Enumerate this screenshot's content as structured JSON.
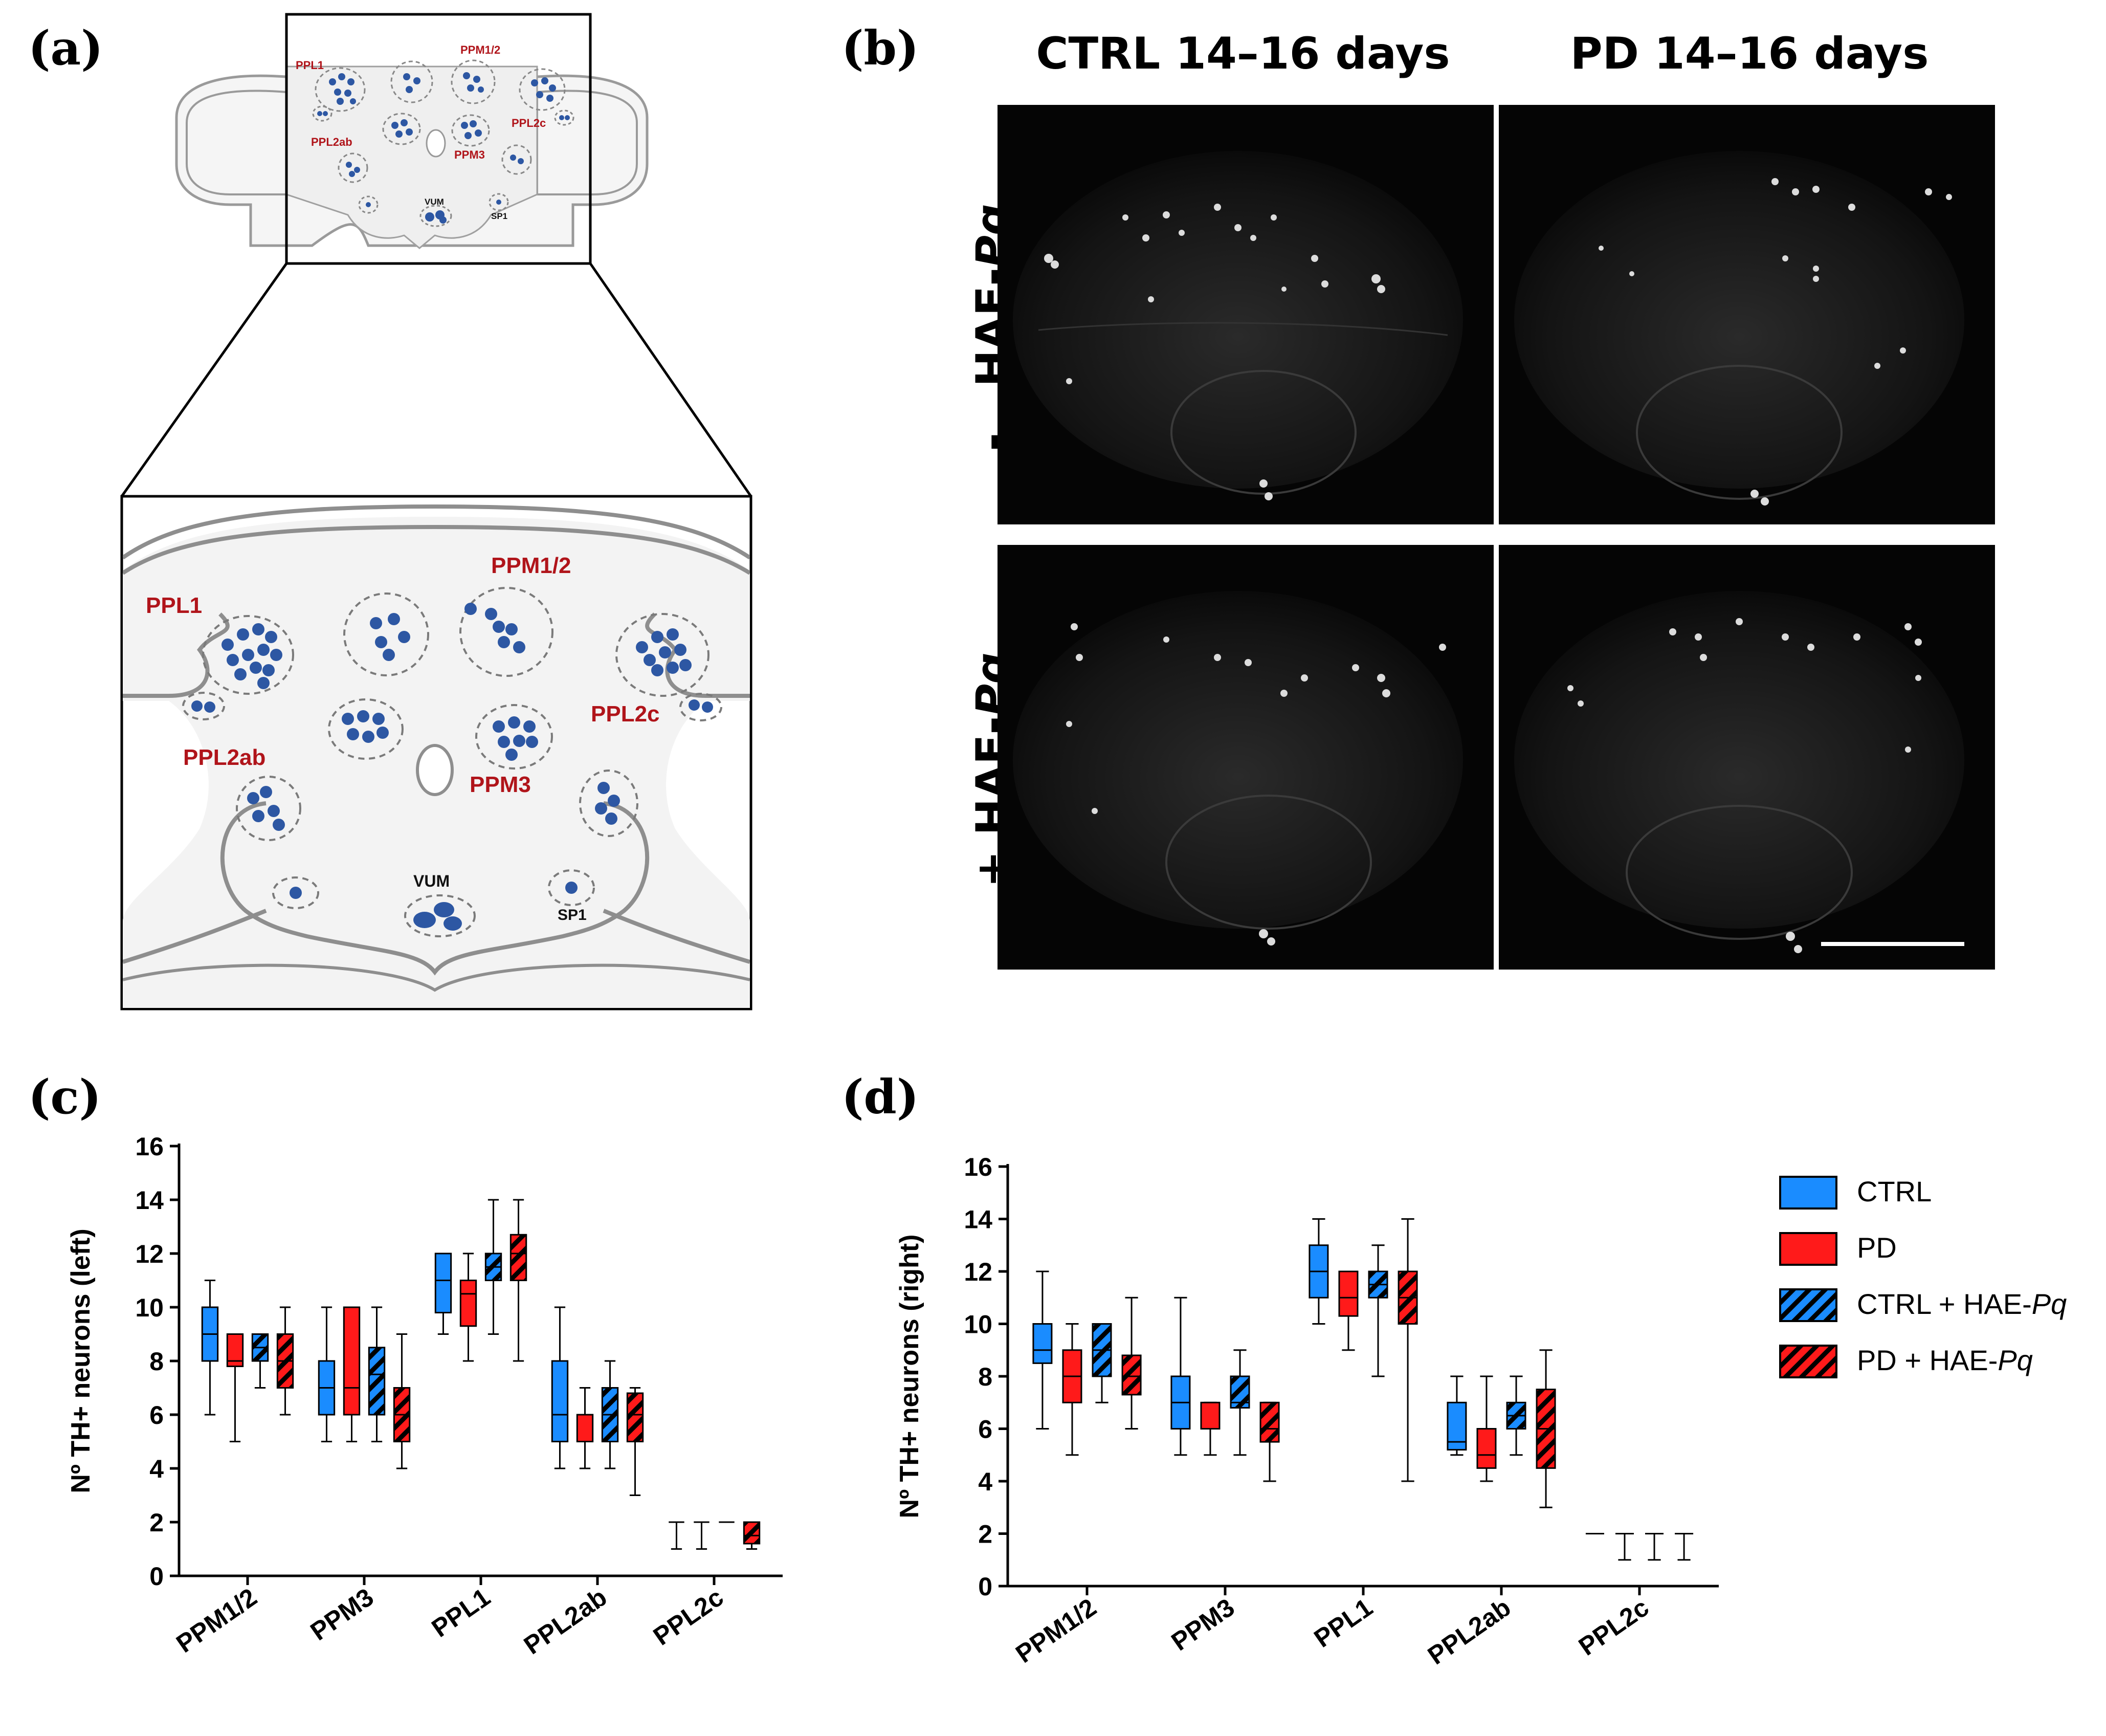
{
  "panels": {
    "a": "(a)",
    "b": "(b)",
    "c": "(c)",
    "d": "(d)"
  },
  "schematic": {
    "clusters": {
      "ppl1": "PPL1",
      "ppm12": "PPM1/2",
      "ppl2ab": "PPL2ab",
      "ppl2c": "PPL2c",
      "ppm3": "PPM3",
      "vum": "VUM",
      "sp1": "SP1"
    }
  },
  "micrographs": {
    "col_ctrl": "CTRL 14–16 days",
    "col_pd": "PD 14–16 days",
    "row_minus_sign": "-",
    "row_plus_sign": "+",
    "row_label": "HAE-",
    "row_label_italic": "Pq"
  },
  "legend": {
    "items": [
      {
        "label": "CTRL",
        "italic": "",
        "color": "#1a8cff",
        "hatched": false
      },
      {
        "label": "PD",
        "italic": "",
        "color": "#ff1a1a",
        "hatched": false
      },
      {
        "label": "CTRL + HAE-",
        "italic": "Pq",
        "color": "#1a8cff",
        "hatched": true
      },
      {
        "label": "PD + HAE-",
        "italic": "Pq",
        "color": "#ff1a1a",
        "hatched": true
      }
    ]
  },
  "chart_data": [
    {
      "type": "box",
      "ylabel": "Nº TH+ neurons (left)",
      "ylim": [
        0,
        16
      ],
      "yticks": [
        "0",
        "2",
        "4",
        "6",
        "8",
        "10",
        "12",
        "14",
        "16"
      ],
      "categories": [
        "PPM1/2",
        "PPM3",
        "PPL1",
        "PPL2ab",
        "PPL2c"
      ],
      "series": [
        {
          "name": "CTRL",
          "color": "#1a8cff",
          "hatched": false,
          "boxes": [
            {
              "min": 6,
              "q1": 8,
              "median": 9,
              "q3": 10,
              "max": 11
            },
            {
              "min": 5,
              "q1": 6,
              "median": 7,
              "q3": 8,
              "max": 10
            },
            {
              "min": 9,
              "q1": 9.8,
              "median": 11,
              "q3": 12,
              "max": 12
            },
            {
              "min": 4,
              "q1": 5,
              "median": 6,
              "q3": 8,
              "max": 10
            },
            {
              "min": 1,
              "q1": 2,
              "median": 2,
              "q3": 2,
              "max": 2
            }
          ]
        },
        {
          "name": "PD",
          "color": "#ff1a1a",
          "hatched": false,
          "boxes": [
            {
              "min": 5,
              "q1": 7.8,
              "median": 8,
              "q3": 9,
              "max": 9
            },
            {
              "min": 5,
              "q1": 6,
              "median": 7,
              "q3": 10,
              "max": 10
            },
            {
              "min": 8,
              "q1": 9.3,
              "median": 10.5,
              "q3": 11,
              "max": 12
            },
            {
              "min": 4,
              "q1": 5,
              "median": 5,
              "q3": 6,
              "max": 7
            },
            {
              "min": 1,
              "q1": 2,
              "median": 2,
              "q3": 2,
              "max": 2
            }
          ]
        },
        {
          "name": "CTRL + HAE-Pq",
          "color": "#1a8cff",
          "hatched": true,
          "boxes": [
            {
              "min": 7,
              "q1": 8,
              "median": 8.5,
              "q3": 9,
              "max": 9
            },
            {
              "min": 5,
              "q1": 6,
              "median": 7.5,
              "q3": 8.5,
              "max": 10
            },
            {
              "min": 9,
              "q1": 11,
              "median": 11.5,
              "q3": 12,
              "max": 14
            },
            {
              "min": 4,
              "q1": 5,
              "median": 6,
              "q3": 7,
              "max": 8
            },
            {
              "min": 2,
              "q1": 2,
              "median": 2,
              "q3": 2,
              "max": 2
            }
          ]
        },
        {
          "name": "PD + HAE-Pq",
          "color": "#ff1a1a",
          "hatched": true,
          "boxes": [
            {
              "min": 6,
              "q1": 7,
              "median": 8,
              "q3": 9,
              "max": 10
            },
            {
              "min": 4,
              "q1": 5,
              "median": 6,
              "q3": 7,
              "max": 9
            },
            {
              "min": 8,
              "q1": 11,
              "median": 12,
              "q3": 12.7,
              "max": 14
            },
            {
              "min": 3,
              "q1": 5,
              "median": 6,
              "q3": 6.8,
              "max": 7
            },
            {
              "min": 1,
              "q1": 1.2,
              "median": 1.5,
              "q3": 2,
              "max": 2
            }
          ]
        }
      ]
    },
    {
      "type": "box",
      "ylabel": "Nº TH+ neurons (right)",
      "ylim": [
        0,
        16
      ],
      "yticks": [
        "0",
        "2",
        "4",
        "6",
        "8",
        "10",
        "12",
        "14",
        "16"
      ],
      "categories": [
        "PPM1/2",
        "PPM3",
        "PPL1",
        "PPL2ab",
        "PPL2c"
      ],
      "series": [
        {
          "name": "CTRL",
          "color": "#1a8cff",
          "hatched": false,
          "boxes": [
            {
              "min": 6,
              "q1": 8.5,
              "median": 9,
              "q3": 10,
              "max": 12
            },
            {
              "min": 5,
              "q1": 6,
              "median": 7,
              "q3": 8,
              "max": 11
            },
            {
              "min": 10,
              "q1": 11,
              "median": 12,
              "q3": 13,
              "max": 14
            },
            {
              "min": 5,
              "q1": 5.2,
              "median": 5.5,
              "q3": 7,
              "max": 8
            },
            {
              "min": 2,
              "q1": 2,
              "median": 2,
              "q3": 2,
              "max": 2
            }
          ]
        },
        {
          "name": "PD",
          "color": "#ff1a1a",
          "hatched": false,
          "boxes": [
            {
              "min": 5,
              "q1": 7,
              "median": 8,
              "q3": 9,
              "max": 10
            },
            {
              "min": 5,
              "q1": 6,
              "median": 6,
              "q3": 7,
              "max": 7
            },
            {
              "min": 9,
              "q1": 10.3,
              "median": 11,
              "q3": 12,
              "max": 12
            },
            {
              "min": 4,
              "q1": 4.5,
              "median": 5,
              "q3": 6,
              "max": 8
            },
            {
              "min": 1,
              "q1": 2,
              "median": 2,
              "q3": 2,
              "max": 2
            }
          ]
        },
        {
          "name": "CTRL + HAE-Pq",
          "color": "#1a8cff",
          "hatched": true,
          "boxes": [
            {
              "min": 7,
              "q1": 8,
              "median": 9,
              "q3": 10,
              "max": 10
            },
            {
              "min": 5,
              "q1": 6.8,
              "median": 7,
              "q3": 8,
              "max": 9
            },
            {
              "min": 8,
              "q1": 11,
              "median": 11.5,
              "q3": 12,
              "max": 13
            },
            {
              "min": 5,
              "q1": 6,
              "median": 6.5,
              "q3": 7,
              "max": 8
            },
            {
              "min": 1,
              "q1": 2,
              "median": 2,
              "q3": 2,
              "max": 2
            }
          ]
        },
        {
          "name": "PD + HAE-Pq",
          "color": "#ff1a1a",
          "hatched": true,
          "boxes": [
            {
              "min": 6,
              "q1": 7.3,
              "median": 8,
              "q3": 8.8,
              "max": 11
            },
            {
              "min": 4,
              "q1": 5.5,
              "median": 6,
              "q3": 7,
              "max": 7
            },
            {
              "min": 4,
              "q1": 10,
              "median": 11,
              "q3": 12,
              "max": 14
            },
            {
              "min": 3,
              "q1": 4.5,
              "median": 6,
              "q3": 7.5,
              "max": 9
            },
            {
              "min": 1,
              "q1": 2,
              "median": 2,
              "q3": 2,
              "max": 2
            }
          ]
        }
      ]
    }
  ]
}
